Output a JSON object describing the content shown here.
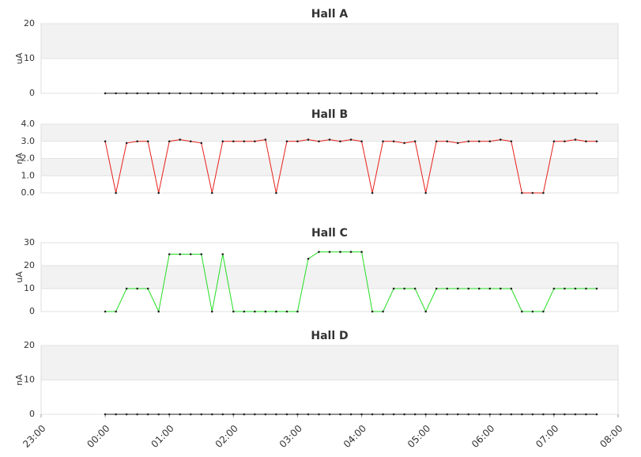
{
  "chart_data": [
    {
      "type": "line",
      "title": "Hall A",
      "ylabel": "uA",
      "color": "#222222",
      "x": [
        "00:00",
        "00:10",
        "00:20",
        "00:30",
        "00:40",
        "00:50",
        "01:00",
        "01:10",
        "01:20",
        "01:30",
        "01:40",
        "01:50",
        "02:00",
        "02:10",
        "02:20",
        "02:30",
        "02:40",
        "02:50",
        "03:00",
        "03:10",
        "03:20",
        "03:30",
        "03:40",
        "03:50",
        "04:00",
        "04:10",
        "04:20",
        "04:30",
        "04:40",
        "04:50",
        "05:00",
        "05:10",
        "05:20",
        "05:30",
        "05:40",
        "05:50",
        "06:00",
        "06:10",
        "06:20",
        "06:30",
        "06:40",
        "06:50",
        "07:00",
        "07:10",
        "07:20",
        "07:30",
        "07:40"
      ],
      "values": [
        0,
        0,
        0,
        0,
        0,
        0,
        0,
        0,
        0,
        0,
        0,
        0,
        0,
        0,
        0,
        0,
        0,
        0,
        0,
        0,
        0,
        0,
        0,
        0,
        0,
        0,
        0,
        0,
        0,
        0,
        0,
        0,
        0,
        0,
        0,
        0,
        0,
        0,
        0,
        0,
        0,
        0,
        0,
        0,
        0,
        0,
        0
      ],
      "xlim": [
        "23:00",
        "08:00"
      ],
      "ylim": [
        0,
        20
      ],
      "yticks": [
        0,
        10,
        20
      ]
    },
    {
      "type": "line",
      "title": "Hall B",
      "ylabel": "nA",
      "color": "#e8201a",
      "x": [
        "00:00",
        "00:10",
        "00:20",
        "00:30",
        "00:40",
        "00:50",
        "01:00",
        "01:10",
        "01:20",
        "01:30",
        "01:40",
        "01:50",
        "02:00",
        "02:10",
        "02:20",
        "02:30",
        "02:40",
        "02:50",
        "03:00",
        "03:10",
        "03:20",
        "03:30",
        "03:40",
        "03:50",
        "04:00",
        "04:10",
        "04:20",
        "04:30",
        "04:40",
        "04:50",
        "05:00",
        "05:10",
        "05:20",
        "05:30",
        "05:40",
        "05:50",
        "06:00",
        "06:10",
        "06:20",
        "06:30",
        "06:40",
        "06:50",
        "07:00",
        "07:10",
        "07:20",
        "07:30",
        "07:40"
      ],
      "values": [
        3.0,
        0,
        2.9,
        3.0,
        3.0,
        0,
        3.0,
        3.1,
        3.0,
        2.9,
        0,
        3.0,
        3.0,
        3.0,
        3.0,
        3.1,
        0,
        3.0,
        3.0,
        3.1,
        3.0,
        3.1,
        3.0,
        3.1,
        3.0,
        0,
        3.0,
        3.0,
        2.9,
        3.0,
        0,
        3.0,
        3.0,
        2.9,
        3.0,
        3.0,
        3.0,
        3.1,
        3.0,
        0,
        0,
        0,
        3.0,
        3.0,
        3.1,
        3.0,
        3.0
      ],
      "xlim": [
        "23:00",
        "08:00"
      ],
      "ylim": [
        0,
        4
      ],
      "yticks": [
        {
          "value": 0,
          "label": "0.0"
        },
        {
          "value": 1,
          "label": "1.0"
        },
        {
          "value": 2,
          "label": "2.0"
        },
        {
          "value": 3,
          "label": "3.0"
        },
        {
          "value": 4,
          "label": "4.0"
        }
      ]
    },
    {
      "type": "line",
      "title": "Hall C",
      "ylabel": "uA",
      "color": "#22dd22",
      "x": [
        "00:00",
        "00:10",
        "00:20",
        "00:30",
        "00:40",
        "00:50",
        "01:00",
        "01:10",
        "01:20",
        "01:30",
        "01:40",
        "01:50",
        "02:00",
        "02:10",
        "02:20",
        "02:30",
        "02:40",
        "02:50",
        "03:00",
        "03:10",
        "03:20",
        "03:30",
        "03:40",
        "03:50",
        "04:00",
        "04:10",
        "04:20",
        "04:30",
        "04:40",
        "04:50",
        "05:00",
        "05:10",
        "05:20",
        "05:30",
        "05:40",
        "05:50",
        "06:00",
        "06:10",
        "06:20",
        "06:30",
        "06:40",
        "06:50",
        "07:00",
        "07:10",
        "07:20",
        "07:30",
        "07:40"
      ],
      "values": [
        0,
        0,
        10,
        10,
        10,
        0,
        25,
        25,
        25,
        25,
        0,
        25,
        0,
        0,
        0,
        0,
        0,
        0,
        0,
        23,
        26,
        26,
        26,
        26,
        26,
        0,
        0,
        10,
        10,
        10,
        0,
        10,
        10,
        10,
        10,
        10,
        10,
        10,
        10,
        0,
        0,
        0,
        10,
        10,
        10,
        10,
        10
      ],
      "xlim": [
        "23:00",
        "08:00"
      ],
      "ylim": [
        0,
        30
      ],
      "yticks": [
        0,
        10,
        20,
        30
      ]
    },
    {
      "type": "line",
      "title": "Hall D",
      "ylabel": "nA",
      "color": "#222222",
      "x": [
        "00:00",
        "00:10",
        "00:20",
        "00:30",
        "00:40",
        "00:50",
        "01:00",
        "01:10",
        "01:20",
        "01:30",
        "01:40",
        "01:50",
        "02:00",
        "02:10",
        "02:20",
        "02:30",
        "02:40",
        "02:50",
        "03:00",
        "03:10",
        "03:20",
        "03:30",
        "03:40",
        "03:50",
        "04:00",
        "04:10",
        "04:20",
        "04:30",
        "04:40",
        "04:50",
        "05:00",
        "05:10",
        "05:20",
        "05:30",
        "05:40",
        "05:50",
        "06:00",
        "06:10",
        "06:20",
        "06:30",
        "06:40",
        "06:50",
        "07:00",
        "07:10",
        "07:20",
        "07:30",
        "07:40"
      ],
      "values": [
        0,
        0,
        0,
        0,
        0,
        0,
        0,
        0,
        0,
        0,
        0,
        0,
        0,
        0,
        0,
        0,
        0,
        0,
        0,
        0,
        0,
        0,
        0,
        0,
        0,
        0,
        0,
        0,
        0,
        0,
        0,
        0,
        0,
        0,
        0,
        0,
        0,
        0,
        0,
        0,
        0,
        0,
        0,
        0,
        0,
        0,
        0
      ],
      "xlim": [
        "23:00",
        "08:00"
      ],
      "ylim": [
        0,
        20
      ],
      "yticks": [
        0,
        10,
        20
      ],
      "xticks": [
        "23:00",
        "00:00",
        "01:00",
        "02:00",
        "03:00",
        "04:00",
        "05:00",
        "06:00",
        "07:00",
        "08:00"
      ]
    }
  ]
}
